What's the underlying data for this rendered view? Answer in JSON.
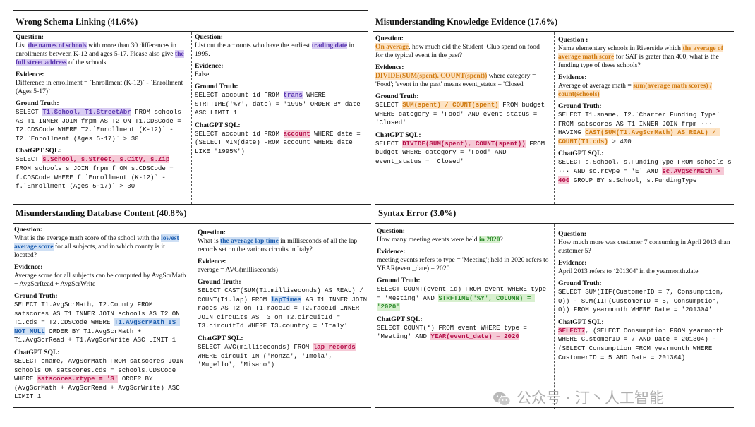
{
  "quadrants": {
    "schema": {
      "title": "Wrong Schema Linking (41.6%)",
      "left": {
        "q_label": "Question:",
        "q_text": [
          {
            "t": "List "
          },
          {
            "t": "the names of schools",
            "c": "purple"
          },
          {
            "t": " with more than 30 differences in enrollments between K-12 and ages 5-17. Please also give "
          },
          {
            "t": "the full street address",
            "c": "purple"
          },
          {
            "t": " of the schools."
          }
        ],
        "ev_label": "Evidence:",
        "ev_text": "Difference in enrollment = `Enrollment (K-12)` - `Enrollment (Ages 5-17)`",
        "gt_label": "Ground Truth:",
        "gt_code": [
          {
            "t": "SELECT "
          },
          {
            "t": "T1.School, T1.StreetAbr",
            "c": "purple"
          },
          {
            "t": " FROM schools AS T1 INNER JOIN frpm AS T2 ON T1.CDSCode = T2.CDSCode WHERE T2.`Enrollment (K-12)` - T2.`Enrollment (Ages 5-17)` > 30"
          }
        ],
        "gpt_label": "ChatGPT SQL:",
        "gpt_code": [
          {
            "t": "SELECT "
          },
          {
            "t": "s.School, s.Street, s.City, s.Zip",
            "c": "pink"
          },
          {
            "t": " FROM schools s JOIN frpm f ON s.CDSCode = f.CDSCode WHERE f.`Enrollment (K-12)` - f.`Enrollment (Ages 5-17)` > 30"
          }
        ]
      },
      "right": {
        "q_label": "Question:",
        "q_text": [
          {
            "t": "List out the accounts who have the earliest "
          },
          {
            "t": "trading date",
            "c": "purple"
          },
          {
            "t": " in 1995."
          }
        ],
        "ev_label": "Evidence:",
        "ev_text": "False",
        "gt_label": "Ground Truth:",
        "gt_code": [
          {
            "t": "SELECT account_id FROM "
          },
          {
            "t": "trans",
            "c": "purple"
          },
          {
            "t": " WHERE STRFTIME('%Y', date) = '1995' ORDER BY date ASC LIMIT 1"
          }
        ],
        "gpt_label": "ChatGPT SQL:",
        "gpt_code": [
          {
            "t": "SELECT account_id FROM "
          },
          {
            "t": "account",
            "c": "pink"
          },
          {
            "t": " WHERE date = (SELECT MIN(date) FROM account WHERE date LIKE '1995%')"
          }
        ]
      }
    },
    "knowledge": {
      "title": "Misunderstanding Knowledge Evidence (17.6%)",
      "left": {
        "q_label": "Question:",
        "q_text": [
          {
            "t": "On average",
            "c": "orange"
          },
          {
            "t": ", how much did the Student_Club spend on food for the typical event in the past?"
          }
        ],
        "ev_label": "Evidence:",
        "ev_text_rich": [
          {
            "t": "DIVIDE(SUM(spent), COUNT(spent))",
            "c": "orange"
          },
          {
            "t": " where category = 'Food'; 'event in the past' means event_status = 'Closed'"
          }
        ],
        "gt_label": "Ground Truth:",
        "gt_code": [
          {
            "t": "SELECT "
          },
          {
            "t": "SUM(spent) / COUNT(spent)",
            "c": "orange"
          },
          {
            "t": " FROM budget WHERE category = 'Food' AND event_status = 'Closed'"
          }
        ],
        "gpt_label": "ChatGPT SQL:",
        "gpt_code": [
          {
            "t": "SELECT "
          },
          {
            "t": "DIVIDE(SUM(spent), COUNT(spent))",
            "c": "pink"
          },
          {
            "t": " FROM budget WHERE category = 'Food' AND event_status = 'Closed'"
          }
        ]
      },
      "right": {
        "q_label": "Question :",
        "q_text": [
          {
            "t": "Name elementary schools in Riverside which "
          },
          {
            "t": "the average of average math score",
            "c": "orange"
          },
          {
            "t": " for SAT is grater than 400, what is the funding type of these schools?"
          }
        ],
        "ev_label": "Evidence:",
        "ev_text_rich": [
          {
            "t": "Average of average math = "
          },
          {
            "t": "sum(average math scores) / count(schools)",
            "c": "orange"
          }
        ],
        "gt_label": "Ground Truth:",
        "gt_code": [
          {
            "t": "SELECT T1.sname, T2.`Charter Funding Type` FROM satscores AS T1 INNER JOIN frpm ··· HAVING "
          },
          {
            "t": "CAST(SUM(T1.AvgScrMath) AS REAL) / COUNT(T1.cds)",
            "c": "orange"
          },
          {
            "t": " > 400"
          }
        ],
        "gpt_label": "ChatGPT SQL:",
        "gpt_code": [
          {
            "t": "SELECT s.School, s.FundingType FROM schools s ··· AND sc.rtype = 'E' AND "
          },
          {
            "t": "sc.AvgScrMath > 400",
            "c": "pink"
          },
          {
            "t": " GROUP BY s.School, s.FundingType"
          }
        ]
      }
    },
    "content": {
      "title": "Misunderstanding Database Content (40.8%)",
      "left": {
        "q_label": "Question:",
        "q_text": [
          {
            "t": "What is the average math score of the school with the "
          },
          {
            "t": "lowest average score",
            "c": "blue"
          },
          {
            "t": " for all subjects, and in which county is it located?"
          }
        ],
        "ev_label": "Evidence:",
        "ev_text": "Average score for all subjects can be computed by AvgScrMath + AvgScrRead + AvgScrWrite",
        "gt_label": "Ground Truth:",
        "gt_code": [
          {
            "t": "SELECT T1.AvgScrMath, T2.County FROM satscores AS T1 INNER JOIN schools AS T2 ON T1.cds = T2.CDSCode WHERE "
          },
          {
            "t": "T1.AvgScrMath IS NOT NULL",
            "c": "blue"
          },
          {
            "t": " ORDER BY T1.AvgScrMath + T1.AvgScrRead + T1.AvgScrWrite ASC LIMIT 1"
          }
        ],
        "gpt_label": "ChatGPT SQL:",
        "gpt_code": [
          {
            "t": "SELECT cname, AvgScrMath FROM satscores JOIN schools ON satscores.cds = schools.CDSCode WHERE "
          },
          {
            "t": "satscores.rtype = 'S'",
            "c": "pink"
          },
          {
            "t": " ORDER BY (AvgScrMath + AvgScrRead + AvgScrWrite) ASC LIMIT 1"
          }
        ]
      },
      "right": {
        "q_label": "Question:",
        "q_text": [
          {
            "t": "What is "
          },
          {
            "t": "the average lap time",
            "c": "blue"
          },
          {
            "t": " in milliseconds of all the lap records set on the various circuits in Italy?"
          }
        ],
        "ev_label": "Evidence:",
        "ev_text": "average = AVG(milliseconds)",
        "gt_label": "Ground Truth:",
        "gt_code": [
          {
            "t": "SELECT CAST(SUM(T1.milliseconds) AS REAL) / COUNT(T1.lap) FROM "
          },
          {
            "t": "lapTimes",
            "c": "blue"
          },
          {
            "t": " AS T1 INNER JOIN races AS T2 on T1.raceId = T2.raceId INNER JOIN circuits AS T3 on T2.circuitId = T3.circuitId WHERE T3.country = 'Italy'"
          }
        ],
        "gpt_label": "ChatGPT SQL:",
        "gpt_code": [
          {
            "t": "SELECT AVG(milliseconds) FROM "
          },
          {
            "t": "lap_records",
            "c": "pink"
          },
          {
            "t": " WHERE circuit IN ('Monza', 'Imola', 'Mugello', 'Misano')"
          }
        ]
      }
    },
    "syntax": {
      "title": "Syntax Error (3.0%)",
      "left": {
        "q_label": "Question:",
        "q_text": [
          {
            "t": "How many meeting events were held "
          },
          {
            "t": "in 2020",
            "c": "green"
          },
          {
            "t": "?"
          }
        ],
        "ev_label": "Evidence:",
        "ev_text": "meeting events refers to type = 'Meeting'; held in 2020 refers to YEAR(event_date) = 2020",
        "gt_label": "Ground Truth:",
        "gt_code": [
          {
            "t": "SELECT COUNT(event_id) FROM event WHERE type = 'Meeting' AND "
          },
          {
            "t": "STRFTIME('%Y', COLUMN) = '2020'",
            "c": "green"
          }
        ],
        "gpt_label": "ChatGPT SQL:",
        "gpt_code": [
          {
            "t": "SELECT COUNT(*) FROM event WHERE type = 'Meeting' AND "
          },
          {
            "t": "YEAR(event_date) = 2020",
            "c": "pink"
          }
        ]
      },
      "right": {
        "q_label": "Question:",
        "q_text": [
          {
            "t": "How much more was customer 7 consuming in April 2013 than customer 5?"
          }
        ],
        "ev_label": "Evidence:",
        "ev_text": "April 2013 refers to ‘201304’ in the yearmonth.date",
        "gt_label": "Ground Truth:",
        "gt_code": [
          {
            "t": "SELECT SUM(IIF(CustomerID = 7, Consumption, 0)) - SUM(IIF(CustomerID = 5, Consumption, 0)) FROM yearmonth WHERE Date = '201304'"
          }
        ],
        "gpt_label": "ChatGPT SQL:",
        "gpt_code": [
          {
            "t": "SELECT7",
            "c": "pink"
          },
          {
            "t": ", (SELECT Consumption FROM yearmonth WHERE CustomerID = 7 AND Date = 201304) - (SELECT Consumption FROM yearmonth WHERE CustomerID = 5 AND Date = 201304)"
          }
        ]
      }
    }
  },
  "watermark": {
    "text": "公众号 · 汀丶人工智能",
    "icon": "wechat-icon"
  }
}
